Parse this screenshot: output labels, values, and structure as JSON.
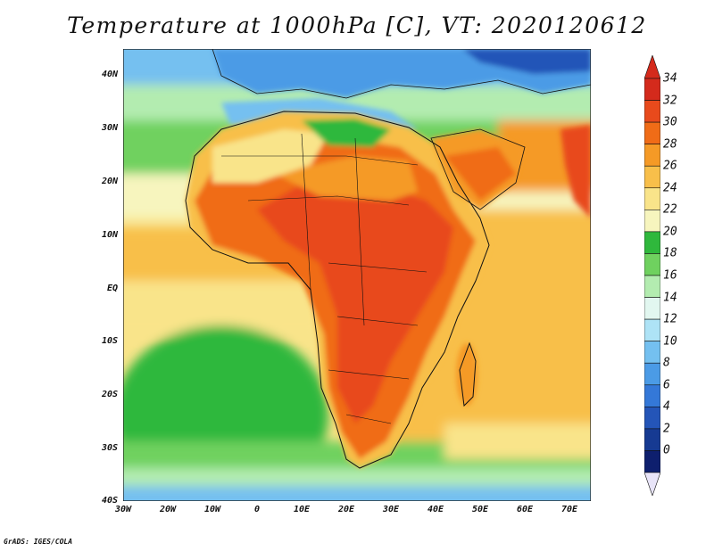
{
  "title": "Temperature at 1000hPa [C], VT: 2020120612",
  "credit": "GrADS: IGES/COLA",
  "lat_labels": [
    "40N",
    "30N",
    "20N",
    "10N",
    "EQ",
    "10S",
    "20S",
    "30S",
    "40S"
  ],
  "lon_labels": [
    "30W",
    "20W",
    "10W",
    "0",
    "10E",
    "20E",
    "30E",
    "40E",
    "50E",
    "60E",
    "70E"
  ],
  "colorbar": {
    "labels": [
      "34",
      "32",
      "30",
      "28",
      "26",
      "24",
      "22",
      "20",
      "18",
      "16",
      "14",
      "12",
      "10",
      "8",
      "6",
      "4",
      "2",
      "0"
    ],
    "colors": [
      "#d42a1c",
      "#e84a1c",
      "#f06c17",
      "#f59a26",
      "#f8bf4a",
      "#f9e48a",
      "#f7f5be",
      "#2fb83c",
      "#6fd15f",
      "#b3ecb0",
      "#e2f7f0",
      "#aee3f6",
      "#74c0f0",
      "#4b9be6",
      "#3478d8",
      "#2455b8",
      "#163a92",
      "#0e1f6e"
    ],
    "over_color": "#d42a1c",
    "under_color": "#e8e4f8"
  }
}
